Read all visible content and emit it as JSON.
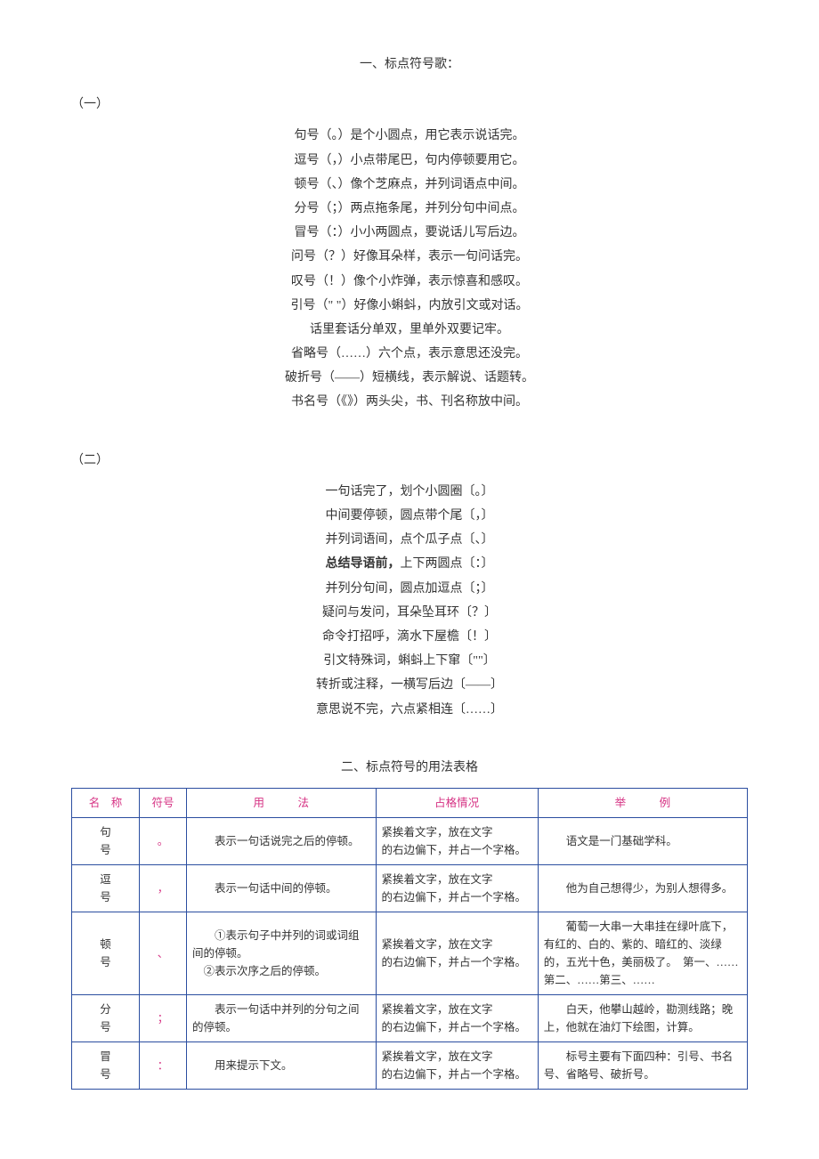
{
  "section1": {
    "title": "一、标点符号歌：",
    "part1_marker": "（一）",
    "part1_lines": [
      "句号（。）是个小圆点，用它表示说话完。",
      "逗号（，）小点带尾巴，句内停顿要用它。",
      "顿号（、）像个芝麻点，并列词语点中间。",
      "分号（；）两点拖条尾，并列分句中间点。",
      "冒号（：）小小两圆点，要说话儿写后边。",
      "问号（？）好像耳朵样，表示一句问话完。",
      "叹号（！）像个小炸弹，表示惊喜和感叹。",
      "引号（\" \"）好像小蝌蚪，内放引文或对话。",
      "话里套话分单双，里单外双要记牢。",
      "省略号（……）六个点，表示意思还没完。",
      "破折号（——）短横线，表示解说、话题转。",
      "书名号（《》）两头尖，书、刊名称放中间。"
    ],
    "part2_marker": "（二）",
    "part2_lines_pre": [
      "一句话完了，划个小圆圈〔。〕",
      "中间要停顿，圆点带个尾〔，〕",
      "并列词语间，点个瓜子点〔、〕"
    ],
    "part2_bold_prefix": "总结导语前，",
    "part2_bold_rest": "上下两圆点〔：〕",
    "part2_lines_post": [
      "并列分句间，圆点加逗点〔；〕",
      "疑问与发问，耳朵坠耳环〔？〕",
      "命令打招呼，滴水下屋檐〔！〕",
      "引文特殊词，蝌蚪上下窜〔\"\"〕",
      "转折或注释，一横写后边〔——〕",
      "意思说不完，六点紧相连〔……〕"
    ]
  },
  "section2": {
    "title": "二、标点符号的用法表格",
    "headers": {
      "name": "名　称",
      "sym": "符号",
      "usage": "用　　　法",
      "pos": "占格情况",
      "ex": "举　　　例"
    },
    "rows": [
      {
        "name": "句号",
        "sym": "。",
        "usage": "表示一句话说完之后的停顿。",
        "pos": "紧挨着文字，放在文字\n的右边偏下，并占一个字格。",
        "ex": "语文是一门基础学科。"
      },
      {
        "name": "逗号",
        "sym": "，",
        "usage": "表示一句话中间的停顿。",
        "pos": "紧挨着文字，放在文字\n的右边偏下，并占一个字格。",
        "ex": "他为自己想得少，为别人想得多。"
      },
      {
        "name": "顿号",
        "sym": "、",
        "usage": "①表示句子中并列的词或词组间的停顿。\n　②表示次序之后的停顿。",
        "pos": "紧挨着文字，放在文字\n的右边偏下，并占一个字格。",
        "ex": "葡萄一大串一大串挂在绿叶底下，有红的、白的、紫的、暗红的、淡绿的，五光十色，美丽极了。　第一、……第二、……第三、……"
      },
      {
        "name": "分号",
        "sym": "；",
        "usage": "表示一句话中并列的分句之间的停顿。",
        "pos": "紧挨着文字，放在文字\n的右边偏下，并占一个字格。",
        "ex": "白天，他攀山越岭，勘测线路；晚上，他就在油灯下绘图，计算。"
      },
      {
        "name": "冒号",
        "sym": "：",
        "usage": "用来提示下文。",
        "pos": "紧挨着文字，放在文字\n的右边偏下，并占一个字格。",
        "ex": "标号主要有下面四种：引号、书名号、省略号、破折号。"
      }
    ]
  },
  "colors": {
    "header_text": "#d63384",
    "border": "#2b4ea0"
  }
}
